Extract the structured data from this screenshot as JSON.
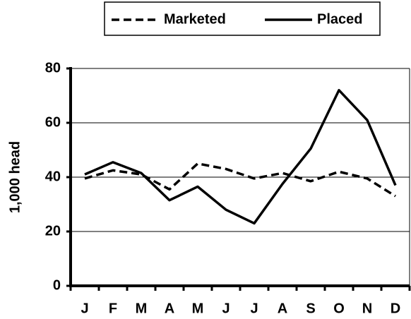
{
  "chart_data": {
    "type": "line",
    "y_label": "1,000 head",
    "categories": [
      "J",
      "F",
      "M",
      "A",
      "M",
      "J",
      "J",
      "A",
      "S",
      "O",
      "N",
      "D"
    ],
    "series": [
      {
        "name": "Marketed",
        "color": "#000000",
        "line_style": "dashed",
        "values": [
          39.5,
          42.5,
          41,
          35.5,
          45,
          43,
          39.5,
          41.5,
          38.5,
          42,
          39.5,
          33
        ]
      },
      {
        "name": "Placed",
        "color": "#000000",
        "line_style": "solid",
        "values": [
          41,
          45.5,
          41.5,
          31.5,
          36.5,
          28,
          23,
          37.5,
          50.5,
          72,
          61,
          37
        ]
      }
    ],
    "ylim": [
      0,
      80
    ],
    "yticks": [
      0,
      20,
      40,
      60,
      80
    ],
    "grid": true,
    "legend": "top"
  }
}
